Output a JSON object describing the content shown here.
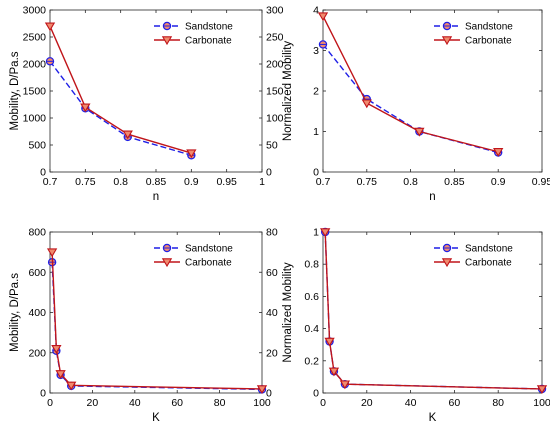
{
  "colors": {
    "sandstone": "#1f1fe6",
    "carbonate": "#c0151a",
    "marker_fill": "#f08a6e"
  },
  "chart_data": [
    {
      "type": "line",
      "xlabel": "n",
      "ylabel": "Mobility, D/Pa.s",
      "xlim": [
        0.7,
        1.0
      ],
      "ylim": [
        0,
        3000
      ],
      "y2lim": [
        0,
        300
      ],
      "xticks": [
        "0.7",
        "0.75",
        "0.8",
        "0.85",
        "0.9",
        "0.95",
        "1"
      ],
      "xtick_values": [
        0.7,
        0.75,
        0.8,
        0.85,
        0.9,
        0.95,
        1.0
      ],
      "yticks": [
        "0",
        "500",
        "1000",
        "1500",
        "2000",
        "2500",
        "3000"
      ],
      "ytick_values": [
        0,
        500,
        1000,
        1500,
        2000,
        2500,
        3000
      ],
      "y2ticks": [
        "0",
        "50",
        "100",
        "150",
        "200",
        "250",
        "300"
      ],
      "y2tick_values": [
        0,
        50,
        100,
        150,
        200,
        250,
        300
      ],
      "legend": "top-right",
      "grid": false,
      "series": [
        {
          "name": "Sandstone",
          "style": "dashed",
          "marker": "circle",
          "x": [
            0.7,
            0.75,
            0.81,
            0.9
          ],
          "y": [
            2050,
            1180,
            650,
            310
          ]
        },
        {
          "name": "Carbonate",
          "style": "solid",
          "marker": "triangle-down",
          "x": [
            0.7,
            0.75,
            0.81,
            0.9
          ],
          "y": [
            2700,
            1200,
            700,
            350
          ]
        }
      ]
    },
    {
      "type": "line",
      "xlabel": "n",
      "ylabel": "Normalized Mobility",
      "xlim": [
        0.7,
        0.95
      ],
      "ylim": [
        0,
        4
      ],
      "xticks": [
        "0.7",
        "0.75",
        "0.8",
        "0.85",
        "0.9",
        "0.95"
      ],
      "xtick_values": [
        0.7,
        0.75,
        0.8,
        0.85,
        0.9,
        0.95
      ],
      "yticks": [
        "0",
        "1",
        "2",
        "3",
        "4"
      ],
      "ytick_values": [
        0,
        1,
        2,
        3,
        4
      ],
      "legend": "top-right",
      "grid": false,
      "series": [
        {
          "name": "Sandstone",
          "style": "dashed",
          "marker": "circle",
          "x": [
            0.7,
            0.75,
            0.81,
            0.9
          ],
          "y": [
            3.15,
            1.8,
            1.0,
            0.48
          ]
        },
        {
          "name": "Carbonate",
          "style": "solid",
          "marker": "triangle-down",
          "x": [
            0.7,
            0.75,
            0.81,
            0.9
          ],
          "y": [
            3.85,
            1.7,
            1.0,
            0.5
          ]
        }
      ]
    },
    {
      "type": "line",
      "xlabel": "K",
      "ylabel": "Mobility, D/Pa.s",
      "xlim": [
        0,
        100
      ],
      "ylim": [
        0,
        800
      ],
      "y2lim": [
        0,
        80
      ],
      "xticks": [
        "0",
        "20",
        "40",
        "60",
        "80",
        "100"
      ],
      "xtick_values": [
        0,
        20,
        40,
        60,
        80,
        100
      ],
      "yticks": [
        "0",
        "200",
        "400",
        "600",
        "800"
      ],
      "ytick_values": [
        0,
        200,
        400,
        600,
        800
      ],
      "y2ticks": [
        "0",
        "20",
        "40",
        "60",
        "80"
      ],
      "y2tick_values": [
        0,
        20,
        40,
        60,
        80
      ],
      "legend": "top-right",
      "grid": false,
      "series": [
        {
          "name": "Sandstone",
          "style": "dashed",
          "marker": "circle",
          "x": [
            1,
            3,
            5,
            10,
            100
          ],
          "y": [
            650,
            210,
            90,
            35,
            18
          ]
        },
        {
          "name": "Carbonate",
          "style": "solid",
          "marker": "triangle-down",
          "x": [
            1,
            3,
            5,
            10,
            100
          ],
          "y": [
            700,
            220,
            95,
            38,
            20
          ]
        }
      ]
    },
    {
      "type": "line",
      "xlabel": "K",
      "ylabel": "Normalized Mobility",
      "xlim": [
        0,
        100
      ],
      "ylim": [
        0,
        1
      ],
      "xticks": [
        "0",
        "20",
        "40",
        "60",
        "80",
        "100"
      ],
      "xtick_values": [
        0,
        20,
        40,
        60,
        80,
        100
      ],
      "yticks": [
        "0",
        "0.2",
        "0.4",
        "0.6",
        "0.8",
        "1"
      ],
      "ytick_values": [
        0,
        0.2,
        0.4,
        0.6,
        0.8,
        1.0
      ],
      "legend": "top-right",
      "grid": false,
      "series": [
        {
          "name": "Sandstone",
          "style": "dashed",
          "marker": "circle",
          "x": [
            1,
            3,
            5,
            10,
            100
          ],
          "y": [
            1.0,
            0.32,
            0.135,
            0.055,
            0.025
          ]
        },
        {
          "name": "Carbonate",
          "style": "solid",
          "marker": "triangle-down",
          "x": [
            1,
            3,
            5,
            10,
            100
          ],
          "y": [
            1.0,
            0.32,
            0.135,
            0.055,
            0.025
          ]
        }
      ]
    }
  ]
}
